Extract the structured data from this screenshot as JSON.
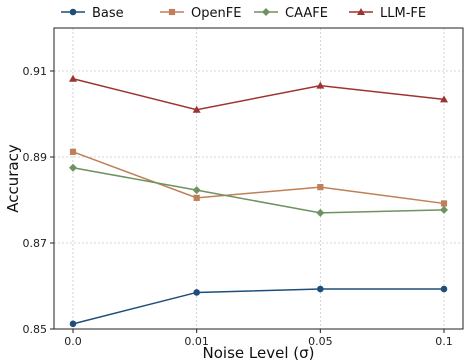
{
  "chart_data": {
    "type": "line",
    "x": [
      "0.0",
      "0.01",
      "0.05",
      "0.1"
    ],
    "xlabel": "Noise Level (σ)",
    "ylabel": "Accuracy",
    "ylim": [
      0.85,
      0.92
    ],
    "yticks": [
      "0.85",
      "0.87",
      "0.89",
      "0.91"
    ],
    "grid": true,
    "legend_position": "top",
    "series": [
      {
        "name": "Base",
        "color": "#1f4e79",
        "marker": "circle",
        "values": [
          0.8512,
          0.8585,
          0.8593,
          0.8593
        ]
      },
      {
        "name": "OpenFE",
        "color": "#c07f56",
        "marker": "square",
        "values": [
          0.8912,
          0.8805,
          0.883,
          0.8792
        ]
      },
      {
        "name": "CAAFE",
        "color": "#6e9261",
        "marker": "diamond",
        "values": [
          0.8875,
          0.8823,
          0.877,
          0.8777
        ]
      },
      {
        "name": "LLM-FE",
        "color": "#9e3430",
        "marker": "triangle",
        "values": [
          0.9082,
          0.901,
          0.9066,
          0.9034
        ]
      }
    ]
  }
}
